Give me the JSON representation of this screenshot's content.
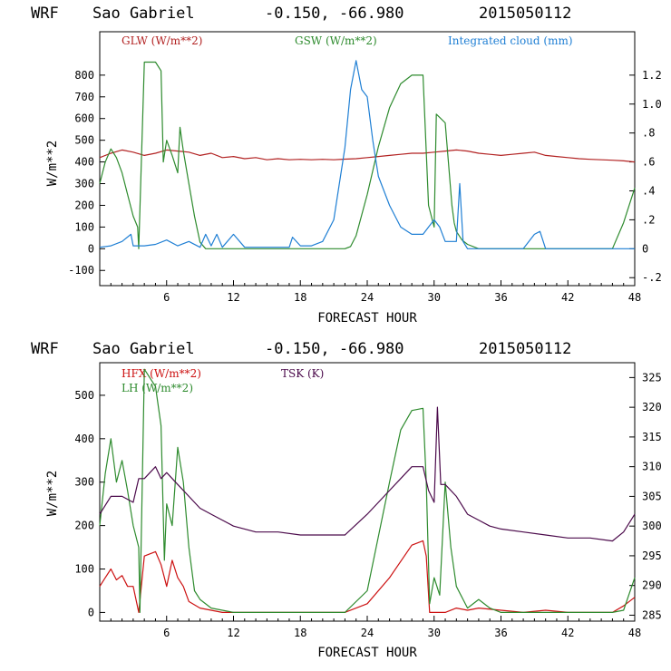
{
  "charts": [
    {
      "header": {
        "model": "WRF",
        "location": "Sao Gabriel",
        "coords": "-0.150, -66.980",
        "run": "2015050112"
      },
      "xlabel": "FORECAST HOUR",
      "ylabel": "W/m**2",
      "xticks": [
        "6",
        "12",
        "18",
        "24",
        "30",
        "36",
        "42",
        "48"
      ],
      "yticks": [
        "800",
        "700",
        "600",
        "500",
        "400",
        "300",
        "200",
        "100",
        "0",
        "-100"
      ],
      "y2ticks": [
        "1.2",
        "1.0",
        ".8",
        ".6",
        ".4",
        ".2",
        "0",
        "-.2"
      ],
      "legend": [
        {
          "label": "GLW (W/m**2)",
          "color": "#b22222"
        },
        {
          "label": "GSW (W/m**2)",
          "color": "#2e8b2e"
        },
        {
          "label": "Integrated cloud (mm)",
          "color": "#1f7fd4"
        }
      ]
    },
    {
      "header": {
        "model": "WRF",
        "location": "Sao Gabriel",
        "coords": "-0.150, -66.980",
        "run": "2015050112"
      },
      "xlabel": "FORECAST HOUR",
      "ylabel": "W/m**2",
      "xticks": [
        "6",
        "12",
        "18",
        "24",
        "30",
        "36",
        "42",
        "48"
      ],
      "yticks": [
        "500",
        "400",
        "300",
        "200",
        "100",
        "0"
      ],
      "y2ticks": [
        "325",
        "320",
        "315",
        "310",
        "305",
        "300",
        "295",
        "290",
        "285"
      ],
      "legend": [
        {
          "label": "HFX (W/m**2)",
          "color": "#cc1111"
        },
        {
          "label": "LH  (W/m**2)",
          "color": "#2e8b2e"
        },
        {
          "label": "TSK (K)",
          "color": "#4b0a4b"
        }
      ]
    }
  ],
  "chart_data": [
    {
      "type": "line",
      "title": "WRF Sao Gabriel -0.150, -66.980 2015050112",
      "xlabel": "FORECAST HOUR",
      "ylabel": "W/m**2",
      "xlim": [
        0,
        48
      ],
      "ylim": [
        -170,
        1000
      ],
      "y2lim": [
        -0.255,
        1.5
      ],
      "series": [
        {
          "name": "GLW (W/m**2)",
          "axis": "left",
          "color": "#b22222",
          "x": [
            0,
            1,
            2,
            3,
            4,
            5,
            6,
            7,
            8,
            9,
            10,
            11,
            12,
            13,
            14,
            15,
            16,
            17,
            18,
            19,
            20,
            21,
            22,
            23,
            24,
            25,
            26,
            27,
            28,
            29,
            30,
            31,
            32,
            33,
            34,
            35,
            36,
            37,
            38,
            39,
            40,
            41,
            42,
            43,
            44,
            45,
            46,
            47,
            48
          ],
          "y": [
            420,
            440,
            455,
            445,
            430,
            440,
            455,
            450,
            445,
            430,
            440,
            420,
            425,
            415,
            420,
            410,
            415,
            410,
            412,
            410,
            412,
            410,
            413,
            415,
            420,
            425,
            430,
            435,
            440,
            440,
            445,
            450,
            455,
            450,
            440,
            435,
            430,
            435,
            440,
            445,
            430,
            425,
            420,
            415,
            412,
            410,
            408,
            405,
            400
          ]
        },
        {
          "name": "GSW (W/m**2)",
          "axis": "left",
          "color": "#2e8b2e",
          "x": [
            0,
            0.5,
            1,
            1.5,
            2,
            2.5,
            3,
            3.4,
            3.5,
            4,
            5,
            5.5,
            5.7,
            6,
            6.5,
            7,
            7.2,
            7.5,
            8,
            8.5,
            9,
            9.5,
            10,
            12,
            14,
            16,
            18,
            20,
            22,
            22.5,
            23,
            24,
            25,
            26,
            27,
            28,
            29,
            29.5,
            30,
            30.2,
            31,
            31.6,
            31.8,
            32,
            32.5,
            33,
            34,
            36,
            38,
            40,
            42,
            44,
            46,
            47,
            48
          ],
          "y": [
            300,
            400,
            460,
            420,
            350,
            250,
            150,
            100,
            0,
            860,
            860,
            820,
            400,
            500,
            430,
            350,
            560,
            450,
            300,
            150,
            30,
            0,
            0,
            0,
            0,
            0,
            0,
            0,
            0,
            10,
            60,
            250,
            470,
            650,
            760,
            800,
            800,
            200,
            100,
            620,
            580,
            200,
            120,
            80,
            40,
            20,
            0,
            0,
            0,
            0,
            0,
            0,
            0,
            120,
            280
          ]
        },
        {
          "name": "Integrated cloud (mm)",
          "axis": "right",
          "color": "#1f7fd4",
          "x": [
            0,
            1,
            2,
            2.8,
            3,
            4,
            5,
            6,
            7,
            8,
            9,
            9.5,
            10,
            10.5,
            11,
            12,
            13,
            14,
            16,
            17,
            17.3,
            18,
            19,
            20,
            21,
            22,
            22.5,
            23,
            23.5,
            24,
            24.5,
            25,
            26,
            27,
            28,
            29,
            29.5,
            30,
            30.5,
            31,
            32,
            32.3,
            32.6,
            33,
            34,
            35,
            36,
            37,
            38,
            39,
            39.5,
            40,
            41,
            42,
            44,
            46,
            48
          ],
          "y": [
            0.01,
            0.02,
            0.05,
            0.1,
            0.02,
            0.02,
            0.03,
            0.06,
            0.02,
            0.05,
            0.01,
            0.1,
            0.02,
            0.1,
            0.01,
            0.1,
            0.01,
            0.01,
            0.01,
            0.01,
            0.08,
            0.02,
            0.02,
            0.05,
            0.2,
            0.7,
            1.1,
            1.3,
            1.1,
            1.05,
            0.75,
            0.5,
            0.3,
            0.15,
            0.1,
            0.1,
            0.15,
            0.2,
            0.15,
            0.05,
            0.05,
            0.45,
            0.05,
            0.0,
            0.0,
            0.0,
            0.0,
            0.0,
            0.0,
            0.1,
            0.12,
            0.0,
            0.0,
            0.0,
            0.0,
            0.0,
            0.0
          ]
        }
      ]
    },
    {
      "type": "line",
      "title": "WRF Sao Gabriel -0.150, -66.980 2015050112",
      "xlabel": "FORECAST HOUR",
      "ylabel": "W/m**2",
      "xlim": [
        0,
        48
      ],
      "ylim": [
        -20,
        575
      ],
      "y2lim": [
        284,
        327.5
      ],
      "series": [
        {
          "name": "HFX (W/m**2)",
          "axis": "left",
          "color": "#cc1111",
          "x": [
            0,
            0.5,
            1,
            1.5,
            2,
            2.5,
            3,
            3.5,
            4,
            5,
            5.5,
            6,
            6.5,
            7,
            7.5,
            8,
            9,
            10,
            11,
            12,
            14,
            16,
            18,
            20,
            22,
            24,
            26,
            28,
            29,
            29.3,
            29.6,
            30,
            31,
            32,
            33,
            34,
            36,
            38,
            40,
            42,
            44,
            46,
            47,
            48
          ],
          "y": [
            60,
            80,
            100,
            75,
            85,
            60,
            60,
            0,
            130,
            140,
            110,
            60,
            120,
            80,
            60,
            25,
            10,
            5,
            0,
            0,
            0,
            0,
            0,
            0,
            0,
            20,
            80,
            155,
            165,
            130,
            0,
            0,
            0,
            10,
            5,
            10,
            5,
            0,
            5,
            0,
            0,
            0,
            15,
            35
          ]
        },
        {
          "name": "LH  (W/m**2)",
          "axis": "left",
          "color": "#2e8b2e",
          "x": [
            0,
            0.5,
            1,
            1.5,
            2,
            2.5,
            3,
            3.5,
            3.6,
            4,
            5,
            5.5,
            5.8,
            6,
            6.5,
            7,
            7.5,
            8,
            8.5,
            9,
            10,
            12,
            14,
            16,
            18,
            20,
            22,
            24,
            26,
            27,
            28,
            29,
            29.3,
            29.6,
            30,
            30.5,
            31,
            31.5,
            32,
            33,
            34,
            35,
            36,
            38,
            40,
            42,
            44,
            46,
            47,
            48
          ],
          "y": [
            200,
            320,
            400,
            300,
            350,
            280,
            200,
            150,
            0,
            560,
            520,
            430,
            120,
            250,
            200,
            380,
            300,
            150,
            50,
            30,
            10,
            0,
            0,
            0,
            0,
            0,
            0,
            50,
            300,
            420,
            465,
            470,
            300,
            20,
            80,
            40,
            300,
            150,
            60,
            10,
            30,
            10,
            0,
            0,
            0,
            0,
            0,
            0,
            5,
            80
          ]
        },
        {
          "name": "TSK (K)",
          "axis": "right",
          "color": "#4b0a4b",
          "x": [
            0,
            1,
            2,
            3,
            3.5,
            4,
            5,
            5.5,
            6,
            7,
            8,
            9,
            10,
            11,
            12,
            14,
            16,
            18,
            20,
            22,
            24,
            26,
            27,
            28,
            29,
            29.5,
            30,
            30.3,
            30.6,
            31,
            32,
            33,
            34,
            35,
            36,
            38,
            40,
            42,
            44,
            46,
            47,
            48
          ],
          "y": [
            302,
            305,
            305,
            304,
            308,
            308,
            310,
            308,
            309,
            307,
            305,
            303,
            302,
            301,
            300,
            299,
            299,
            298.5,
            298.5,
            298.5,
            302,
            306,
            308,
            310,
            310,
            306,
            304,
            320,
            307,
            307,
            305,
            302,
            301,
            300,
            299.5,
            299,
            298.5,
            298,
            298,
            297.5,
            299,
            302
          ]
        }
      ]
    }
  ]
}
